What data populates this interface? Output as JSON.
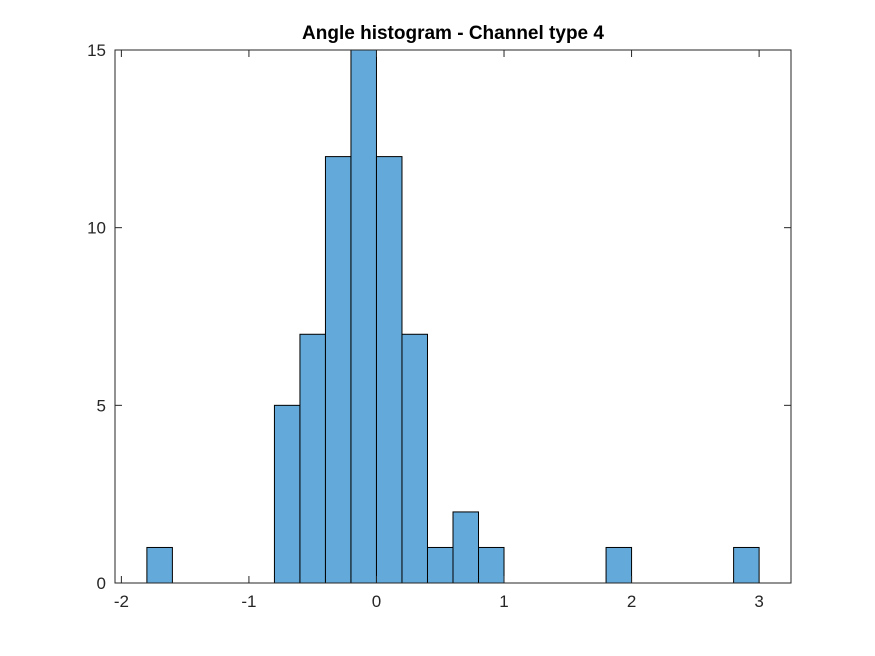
{
  "chart_data": {
    "type": "bar",
    "title": "Angle histogram - Channel type 4",
    "xlabel": "",
    "ylabel": "",
    "bin_width": 0.2,
    "bins": [
      {
        "start": -1.8,
        "end": -1.6,
        "count": 1
      },
      {
        "start": -0.8,
        "end": -0.6,
        "count": 5
      },
      {
        "start": -0.6,
        "end": -0.4,
        "count": 7
      },
      {
        "start": -0.4,
        "end": -0.2,
        "count": 12
      },
      {
        "start": -0.2,
        "end": 0.0,
        "count": 15
      },
      {
        "start": 0.0,
        "end": 0.2,
        "count": 12
      },
      {
        "start": 0.2,
        "end": 0.4,
        "count": 7
      },
      {
        "start": 0.4,
        "end": 0.6,
        "count": 1
      },
      {
        "start": 0.6,
        "end": 0.8,
        "count": 2
      },
      {
        "start": 0.8,
        "end": 1.0,
        "count": 1
      },
      {
        "start": 1.8,
        "end": 2.0,
        "count": 1
      },
      {
        "start": 2.8,
        "end": 3.0,
        "count": 1
      }
    ],
    "xlim": [
      -2.05,
      3.25
    ],
    "ylim": [
      0,
      15
    ],
    "xticks": [
      -2,
      -1,
      0,
      1,
      2,
      3
    ],
    "xtick_labels": [
      "-2",
      "-1",
      "0",
      "1",
      "2",
      "3"
    ],
    "yticks": [
      0,
      5,
      10,
      15
    ],
    "ytick_labels": [
      "0",
      "5",
      "10",
      "15"
    ],
    "grid": false,
    "bar_color": "#63a9d9",
    "edge_color": "#000000"
  }
}
